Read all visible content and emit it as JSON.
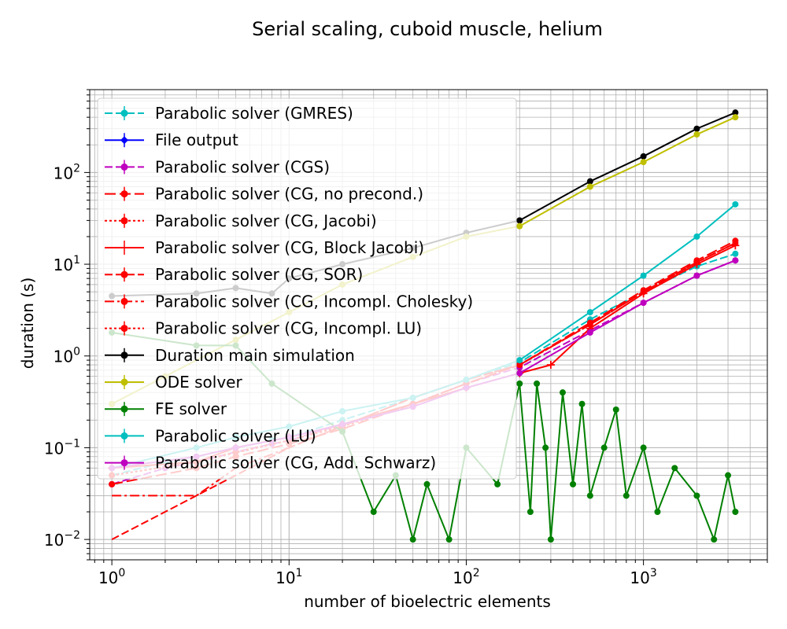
{
  "chart_data": {
    "type": "line",
    "title": "Serial scaling, cuboid muscle, helium",
    "xlabel": "number of bioelectric elements",
    "ylabel": "duration (s)",
    "xscale": "log",
    "yscale": "log",
    "xlim": [
      0.75,
      5000
    ],
    "ylim": [
      0.006,
      800
    ],
    "x_ticks": [
      {
        "value": 1,
        "base": "10",
        "exp": "0"
      },
      {
        "value": 10,
        "base": "10",
        "exp": "1"
      },
      {
        "value": 100,
        "base": "10",
        "exp": "2"
      },
      {
        "value": 1000,
        "base": "10",
        "exp": "3"
      }
    ],
    "y_ticks": [
      {
        "value": 0.01,
        "base": "10",
        "exp": "−2"
      },
      {
        "value": 0.1,
        "base": "10",
        "exp": "−1"
      },
      {
        "value": 1,
        "base": "10",
        "exp": "0"
      },
      {
        "value": 10,
        "base": "10",
        "exp": "1"
      },
      {
        "value": 100,
        "base": "10",
        "exp": "2"
      }
    ],
    "grid": true,
    "legend_position": "upper-left",
    "series": [
      {
        "name": "Parabolic solver (GMRES)",
        "color": "#00bfbf",
        "dash": "dashed",
        "marker": "circle",
        "x": [
          1,
          2,
          3,
          5,
          8,
          10,
          20,
          50,
          100,
          200,
          500,
          1000,
          2000,
          3300
        ],
        "y": [
          0.05,
          0.07,
          0.08,
          0.1,
          0.12,
          0.13,
          0.2,
          0.35,
          0.55,
          0.85,
          2.5,
          5.0,
          9.5,
          13
        ]
      },
      {
        "name": "File output",
        "color": "#0000ff",
        "dash": "solid",
        "marker": "diamond",
        "x": [],
        "y": []
      },
      {
        "name": "Parabolic solver (CGS)",
        "color": "#bf00bf",
        "dash": "dashed",
        "marker": "circle",
        "x": [
          1,
          2,
          3,
          5,
          8,
          10,
          20,
          50,
          100,
          200,
          500,
          1000,
          2000,
          3300
        ],
        "y": [
          0.04,
          0.06,
          0.07,
          0.09,
          0.11,
          0.12,
          0.18,
          0.3,
          0.5,
          0.75,
          1.9,
          3.8,
          7.5,
          11
        ]
      },
      {
        "name": "Parabolic solver (CG, no precond.)",
        "color": "#ff0000",
        "dash": "longdash",
        "marker": "circle",
        "x": [
          1,
          3,
          5,
          10,
          20,
          50,
          100,
          200,
          500,
          1000,
          2000,
          3300
        ],
        "y": [
          0.04,
          0.06,
          0.08,
          0.11,
          0.16,
          0.3,
          0.5,
          0.8,
          2.3,
          5.2,
          11,
          18
        ]
      },
      {
        "name": "Parabolic solver (CG, Jacobi)",
        "color": "#ff0000",
        "dash": "dotted",
        "marker": "circle",
        "x": [
          1,
          3,
          5,
          10,
          20,
          50,
          100,
          200,
          500,
          1000,
          2000,
          3300
        ],
        "y": [
          0.05,
          0.07,
          0.09,
          0.12,
          0.17,
          0.3,
          0.5,
          0.8,
          2.2,
          5.0,
          10.5,
          17
        ]
      },
      {
        "name": "Parabolic solver (CG, Block Jacobi)",
        "color": "#ff0000",
        "dash": "solid",
        "marker": "plus",
        "x": [
          1,
          3,
          5,
          10,
          20,
          50,
          100,
          200,
          300,
          500,
          1000,
          2000,
          3300
        ],
        "y": [
          0.06,
          0.07,
          0.1,
          0.13,
          0.18,
          0.3,
          0.45,
          0.65,
          0.8,
          2.0,
          4.8,
          10,
          16
        ]
      },
      {
        "name": "Parabolic solver (CG, SOR)",
        "color": "#ff0000",
        "dash": "dashed",
        "marker": "none",
        "x": [
          1,
          3,
          10,
          50,
          100,
          200,
          500,
          1000,
          2000,
          3300
        ],
        "y": [
          0.01,
          0.03,
          0.1,
          0.35,
          0.55,
          0.8,
          2.2,
          5.0,
          10.5,
          17
        ]
      },
      {
        "name": "Parabolic solver (CG, Incompl. Cholesky)",
        "color": "#ff0000",
        "dash": "dashdot",
        "marker": "none",
        "x": [
          1,
          3,
          5,
          10,
          50,
          100,
          200,
          500,
          1000,
          2000,
          3300
        ],
        "y": [
          0.03,
          0.03,
          0.06,
          0.1,
          0.35,
          0.55,
          0.8,
          2.2,
          5.0,
          10.5,
          17
        ]
      },
      {
        "name": "Parabolic solver (CG, Incompl. LU)",
        "color": "#ff0000",
        "dash": "dotted",
        "marker": "none",
        "x": [
          1,
          3,
          10,
          50,
          100,
          200,
          500,
          1000,
          2000,
          3300
        ],
        "y": [
          0.05,
          0.07,
          0.12,
          0.3,
          0.5,
          0.8,
          2.2,
          5.0,
          10.5,
          17
        ]
      },
      {
        "name": "Duration main simulation",
        "color": "#000000",
        "dash": "solid",
        "marker": "circle",
        "x": [
          1,
          3,
          5,
          8,
          10,
          20,
          50,
          100,
          200,
          500,
          1000,
          2000,
          3300
        ],
        "y": [
          4.5,
          4.8,
          5.5,
          4.8,
          7,
          10,
          15,
          22,
          30,
          80,
          150,
          300,
          450
        ]
      },
      {
        "name": "ODE solver",
        "color": "#bfbf00",
        "dash": "solid",
        "marker": "circle",
        "x": [
          1,
          2,
          5,
          10,
          20,
          50,
          100,
          200,
          500,
          1000,
          2000,
          3300
        ],
        "y": [
          0.3,
          0.6,
          1.5,
          3,
          6,
          12,
          20,
          26,
          70,
          130,
          260,
          400
        ]
      },
      {
        "name": "FE solver",
        "color": "#008000",
        "dash": "solid",
        "marker": "circle",
        "x": [
          1,
          3,
          5,
          8,
          20,
          30,
          40,
          50,
          60,
          80,
          100,
          150,
          200,
          230,
          250,
          280,
          300,
          350,
          400,
          450,
          500,
          600,
          700,
          800,
          1000,
          1200,
          1500,
          2000,
          2500,
          3000,
          3300
        ],
        "y": [
          1.8,
          1.3,
          1.3,
          0.5,
          0.15,
          0.02,
          0.05,
          0.01,
          0.04,
          0.01,
          0.1,
          0.04,
          0.5,
          0.02,
          0.5,
          0.1,
          0.01,
          0.4,
          0.04,
          0.3,
          0.03,
          0.1,
          0.26,
          0.03,
          0.1,
          0.02,
          0.06,
          0.03,
          0.01,
          0.05,
          0.02
        ]
      },
      {
        "name": "Parabolic solver (LU)",
        "color": "#00bfbf",
        "dash": "solid",
        "marker": "circle",
        "x": [
          1,
          3,
          5,
          10,
          20,
          50,
          100,
          200,
          500,
          1000,
          2000,
          3300
        ],
        "y": [
          0.06,
          0.1,
          0.13,
          0.17,
          0.25,
          0.35,
          0.55,
          0.9,
          3.0,
          7.5,
          20,
          45
        ]
      },
      {
        "name": "Parabolic solver (CG, Add. Schwarz)",
        "color": "#bf00bf",
        "dash": "solid",
        "marker": "circle",
        "x": [
          1,
          3,
          5,
          10,
          20,
          50,
          100,
          200,
          500,
          1000,
          2000,
          3300
        ],
        "y": [
          0.06,
          0.08,
          0.1,
          0.13,
          0.18,
          0.28,
          0.45,
          0.65,
          1.8,
          3.8,
          7.5,
          11
        ]
      }
    ]
  }
}
